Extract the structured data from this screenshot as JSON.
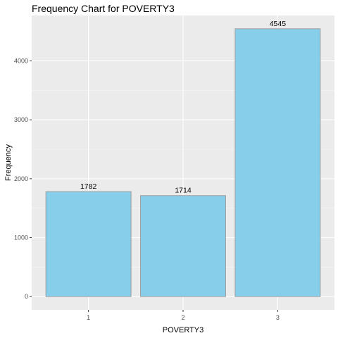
{
  "chart_data": {
    "type": "bar",
    "title": "Frequency Chart for POVERTY3",
    "xlabel": "POVERTY3",
    "ylabel": "Frequency",
    "categories": [
      "1",
      "2",
      "3"
    ],
    "values": [
      1782,
      1714,
      4545
    ],
    "data_labels": [
      "1782",
      "1714",
      "4545"
    ],
    "ylim": [
      -225,
      4770
    ],
    "yticks": [
      0,
      1000,
      2000,
      3000,
      4000
    ],
    "ytick_labels": [
      "0",
      "1000",
      "2000",
      "3000",
      "4000"
    ],
    "grid": true,
    "legend": "none",
    "colors": {
      "bar_fill": "#87ceeb",
      "bar_stroke": "#a0a0a0",
      "panel_bg": "#ebebeb",
      "grid_major": "#ffffff"
    }
  }
}
